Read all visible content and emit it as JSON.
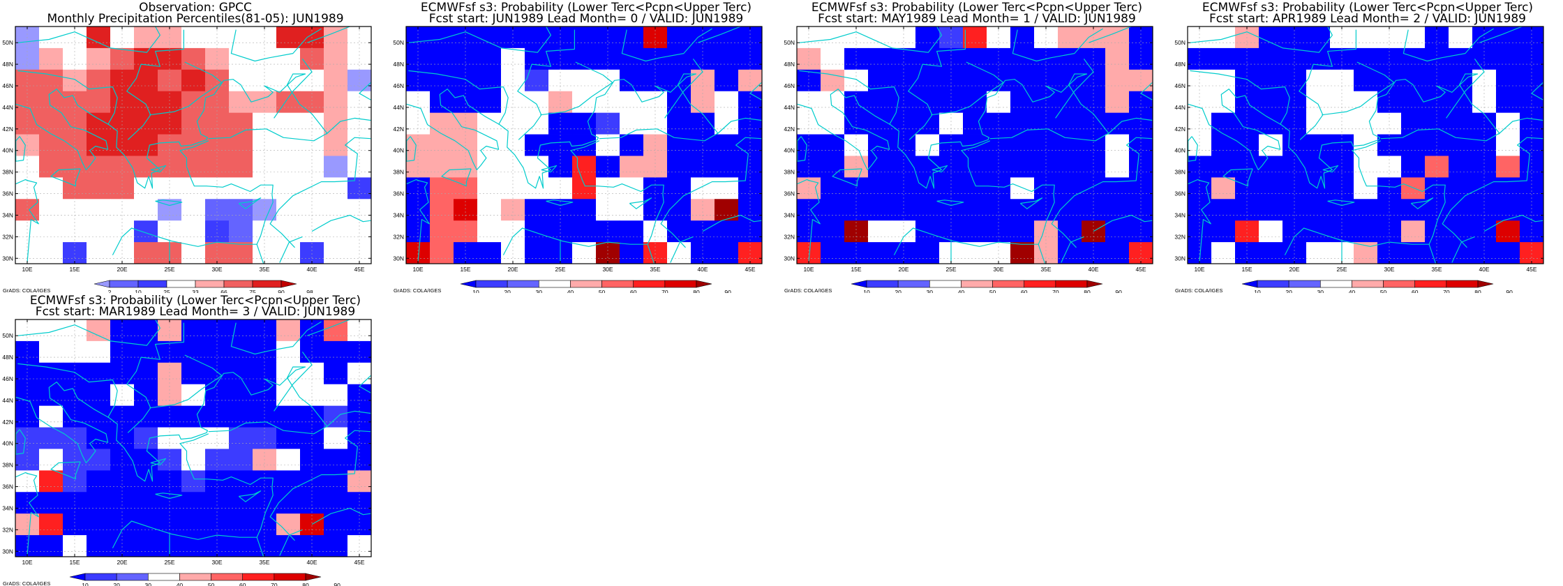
{
  "palette": {
    "pct": [
      "#9999ff",
      "#6464ff",
      "#3c3cff",
      "#ffffff",
      "#ffaaaa",
      "#f06060",
      "#e02020",
      "#c00000"
    ],
    "prob": [
      "#0000ff",
      "#3c3cff",
      "#6464ff",
      "#ffffff",
      "#ffaaaa",
      "#ff6464",
      "#ff2020",
      "#dd0000",
      "#a00000"
    ],
    "coast": "#00cccc"
  },
  "grads_credit": "GrADS: COLA/IGES",
  "map": {
    "lon_labels": [
      "10E",
      "15E",
      "20E",
      "25E",
      "30E",
      "35E",
      "40E",
      "45E"
    ],
    "lat_labels": [
      "50N",
      "48N",
      "46N",
      "44N",
      "42N",
      "40N",
      "38N",
      "36N",
      "34N",
      "32N",
      "30N"
    ]
  },
  "panels": [
    {
      "id": "obs",
      "title1": "Observation: GPCC",
      "title2": "Monthly Precipitation Percentiles(81-05): JUN1989",
      "scale": "pct",
      "colorbar_labels": [
        "2",
        "10",
        "25",
        "33",
        "66",
        "75",
        "90",
        "98"
      ],
      "grid": [
        [
          0,
          3,
          3,
          6,
          3,
          4,
          4,
          3,
          3,
          3,
          3,
          6,
          6,
          4,
          3
        ],
        [
          0,
          4,
          3,
          4,
          5,
          6,
          6,
          5,
          4,
          3,
          3,
          3,
          5,
          4,
          3
        ],
        [
          5,
          5,
          4,
          5,
          6,
          6,
          5,
          6,
          5,
          3,
          3,
          3,
          3,
          4,
          0
        ],
        [
          5,
          5,
          5,
          5,
          6,
          6,
          6,
          5,
          5,
          4,
          4,
          5,
          5,
          4,
          3
        ],
        [
          5,
          5,
          5,
          6,
          6,
          6,
          6,
          5,
          5,
          5,
          3,
          3,
          3,
          4,
          3
        ],
        [
          4,
          5,
          5,
          6,
          6,
          6,
          5,
          5,
          5,
          5,
          3,
          3,
          3,
          4,
          3
        ],
        [
          3,
          5,
          5,
          5,
          5,
          5,
          5,
          5,
          5,
          5,
          3,
          3,
          3,
          0,
          3
        ],
        [
          3,
          3,
          5,
          5,
          5,
          3,
          3,
          3,
          3,
          3,
          3,
          3,
          3,
          3,
          2
        ],
        [
          5,
          3,
          3,
          3,
          3,
          3,
          0,
          3,
          1,
          1,
          0,
          3,
          3,
          3,
          3
        ],
        [
          3,
          3,
          3,
          3,
          3,
          2,
          3,
          3,
          2,
          1,
          3,
          3,
          3,
          3,
          3
        ],
        [
          3,
          3,
          2,
          3,
          3,
          5,
          5,
          3,
          5,
          5,
          3,
          3,
          2,
          3,
          3
        ],
        [
          3,
          3,
          3,
          3,
          5,
          6,
          3,
          3,
          5,
          5,
          3,
          3,
          2,
          2,
          3
        ]
      ]
    },
    {
      "id": "lead0",
      "title1": "ECMWFsf s3: Probability (Lower Terc<Pcpn<Upper Terc)",
      "title2": "Fcst start: JUN1989  Lead Month= 0 / VALID: JUN1989",
      "scale": "prob",
      "colorbar_labels": [
        "10",
        "20",
        "30",
        "40",
        "50",
        "60",
        "70",
        "80",
        "90"
      ],
      "grid": [
        [
          0,
          0,
          0,
          0,
          0,
          0,
          0,
          0,
          0,
          0,
          7,
          0,
          0,
          0,
          0
        ],
        [
          0,
          0,
          0,
          0,
          3,
          0,
          0,
          0,
          0,
          0,
          0,
          0,
          0,
          0,
          0
        ],
        [
          0,
          0,
          0,
          0,
          3,
          1,
          3,
          3,
          3,
          0,
          0,
          0,
          4,
          0,
          4
        ],
        [
          3,
          0,
          0,
          0,
          3,
          3,
          4,
          3,
          3,
          3,
          3,
          0,
          4,
          3,
          0
        ],
        [
          3,
          4,
          4,
          3,
          3,
          3,
          0,
          0,
          1,
          3,
          3,
          0,
          0,
          3,
          0
        ],
        [
          4,
          4,
          4,
          3,
          3,
          0,
          0,
          0,
          3,
          0,
          4,
          0,
          0,
          0,
          0
        ],
        [
          4,
          4,
          4,
          3,
          3,
          3,
          0,
          6,
          0,
          4,
          4,
          0,
          0,
          0,
          0
        ],
        [
          0,
          5,
          5,
          3,
          3,
          3,
          3,
          6,
          3,
          3,
          0,
          0,
          3,
          3,
          0
        ],
        [
          0,
          5,
          7,
          3,
          4,
          0,
          0,
          0,
          3,
          3,
          0,
          0,
          4,
          8,
          0
        ],
        [
          0,
          5,
          5,
          3,
          3,
          0,
          0,
          0,
          0,
          0,
          3,
          0,
          0,
          0,
          0
        ],
        [
          7,
          5,
          0,
          0,
          3,
          0,
          0,
          3,
          8,
          0,
          6,
          3,
          0,
          0,
          6
        ],
        [
          0,
          5,
          0,
          0,
          3,
          0,
          0,
          3,
          0,
          0,
          0,
          0,
          0,
          0,
          6
        ]
      ]
    },
    {
      "id": "lead1",
      "title1": "ECMWFsf s3: Probability (Lower Terc<Pcpn<Upper Terc)",
      "title2": "Fcst start: MAY1989  Lead Month= 1 / VALID: JUN1989",
      "scale": "prob",
      "colorbar_labels": [
        "10",
        "20",
        "30",
        "40",
        "50",
        "60",
        "70",
        "80",
        "90"
      ],
      "grid": [
        [
          3,
          3,
          3,
          3,
          3,
          0,
          1,
          6,
          3,
          0,
          3,
          4,
          4,
          4,
          0
        ],
        [
          4,
          3,
          0,
          0,
          0,
          0,
          0,
          0,
          0,
          0,
          0,
          0,
          0,
          4,
          0
        ],
        [
          0,
          4,
          3,
          0,
          0,
          0,
          0,
          0,
          0,
          0,
          0,
          0,
          0,
          4,
          4
        ],
        [
          3,
          3,
          0,
          0,
          0,
          0,
          0,
          0,
          3,
          0,
          0,
          0,
          0,
          4,
          0
        ],
        [
          3,
          3,
          0,
          0,
          0,
          0,
          3,
          0,
          0,
          0,
          0,
          0,
          0,
          0,
          0
        ],
        [
          0,
          0,
          3,
          0,
          0,
          3,
          0,
          0,
          0,
          0,
          0,
          0,
          0,
          3,
          0
        ],
        [
          0,
          0,
          4,
          0,
          0,
          0,
          0,
          0,
          0,
          0,
          0,
          0,
          0,
          3,
          0
        ],
        [
          4,
          0,
          0,
          0,
          0,
          0,
          0,
          0,
          0,
          3,
          0,
          0,
          0,
          0,
          0
        ],
        [
          0,
          0,
          0,
          0,
          0,
          0,
          0,
          0,
          0,
          0,
          0,
          0,
          0,
          0,
          0
        ],
        [
          0,
          0,
          8,
          3,
          3,
          0,
          0,
          0,
          0,
          0,
          4,
          0,
          8,
          0,
          0
        ],
        [
          6,
          0,
          0,
          0,
          0,
          0,
          3,
          3,
          3,
          8,
          4,
          0,
          0,
          0,
          6
        ],
        [
          0,
          3,
          0,
          0,
          0,
          3,
          3,
          3,
          3,
          0,
          0,
          0,
          0,
          0,
          0
        ]
      ]
    },
    {
      "id": "lead2",
      "title1": "ECMWFsf s3: Probability (Lower Terc<Pcpn<Upper Terc)",
      "title2": "Fcst start: APR1989  Lead Month= 2 / VALID: JUN1989",
      "scale": "prob",
      "colorbar_labels": [
        "10",
        "20",
        "30",
        "40",
        "50",
        "60",
        "70",
        "80",
        "90"
      ],
      "grid": [
        [
          3,
          3,
          4,
          0,
          0,
          0,
          3,
          3,
          3,
          3,
          0,
          3,
          0,
          0,
          0
        ],
        [
          0,
          0,
          0,
          0,
          0,
          0,
          0,
          0,
          0,
          0,
          0,
          0,
          0,
          0,
          0
        ],
        [
          3,
          3,
          0,
          0,
          0,
          3,
          3,
          0,
          0,
          0,
          0,
          0,
          3,
          0,
          0
        ],
        [
          3,
          3,
          0,
          0,
          0,
          3,
          3,
          3,
          0,
          0,
          0,
          0,
          3,
          0,
          0
        ],
        [
          3,
          0,
          0,
          0,
          0,
          3,
          3,
          3,
          3,
          0,
          0,
          0,
          0,
          3,
          0
        ],
        [
          3,
          0,
          0,
          3,
          0,
          0,
          0,
          3,
          0,
          0,
          0,
          0,
          0,
          3,
          0
        ],
        [
          0,
          0,
          0,
          0,
          0,
          0,
          0,
          3,
          3,
          0,
          5,
          0,
          0,
          5,
          0
        ],
        [
          0,
          4,
          0,
          0,
          0,
          0,
          0,
          3,
          0,
          5,
          0,
          0,
          0,
          0,
          0
        ],
        [
          0,
          0,
          0,
          0,
          0,
          0,
          0,
          0,
          0,
          0,
          0,
          0,
          0,
          0,
          0
        ],
        [
          0,
          0,
          6,
          3,
          0,
          0,
          0,
          0,
          0,
          4,
          0,
          0,
          0,
          7,
          0
        ],
        [
          0,
          3,
          0,
          0,
          0,
          3,
          3,
          4,
          0,
          0,
          0,
          0,
          0,
          0,
          6
        ],
        [
          0,
          0,
          0,
          0,
          0,
          0,
          0,
          0,
          0,
          0,
          0,
          0,
          0,
          0,
          6
        ]
      ]
    },
    {
      "id": "lead3",
      "title1": "ECMWFsf s3: Probability (Lower Terc<Pcpn<Upper Terc)",
      "title2": "Fcst start: MAR1989  Lead Month= 3 / VALID: JUN1989",
      "scale": "prob",
      "colorbar_labels": [
        "10",
        "20",
        "30",
        "40",
        "50",
        "60",
        "70",
        "80",
        "90"
      ],
      "grid": [
        [
          3,
          3,
          3,
          4,
          0,
          0,
          4,
          0,
          0,
          0,
          0,
          4,
          0,
          5,
          3
        ],
        [
          0,
          3,
          3,
          3,
          0,
          0,
          0,
          0,
          0,
          0,
          0,
          3,
          0,
          0,
          0
        ],
        [
          0,
          0,
          0,
          0,
          0,
          0,
          4,
          0,
          0,
          0,
          0,
          3,
          3,
          0,
          3
        ],
        [
          0,
          0,
          0,
          0,
          3,
          0,
          4,
          3,
          0,
          0,
          0,
          3,
          3,
          3,
          0
        ],
        [
          0,
          3,
          0,
          0,
          0,
          0,
          0,
          0,
          0,
          0,
          0,
          0,
          0,
          1,
          0
        ],
        [
          1,
          1,
          1,
          0,
          0,
          1,
          3,
          3,
          3,
          1,
          1,
          0,
          0,
          3,
          0
        ],
        [
          1,
          3,
          1,
          1,
          0,
          0,
          1,
          3,
          1,
          1,
          4,
          3,
          0,
          0,
          0
        ],
        [
          3,
          6,
          1,
          0,
          0,
          0,
          0,
          1,
          0,
          0,
          0,
          0,
          0,
          0,
          4
        ],
        [
          0,
          0,
          0,
          0,
          0,
          0,
          0,
          0,
          0,
          0,
          0,
          0,
          0,
          0,
          0
        ],
        [
          4,
          6,
          0,
          0,
          0,
          0,
          0,
          0,
          0,
          0,
          0,
          4,
          7,
          0,
          0
        ],
        [
          0,
          0,
          3,
          0,
          0,
          0,
          0,
          0,
          0,
          0,
          0,
          0,
          0,
          0,
          3
        ],
        [
          0,
          3,
          0,
          0,
          0,
          0,
          3,
          3,
          3,
          0,
          3,
          3,
          0,
          0,
          0
        ]
      ]
    }
  ]
}
